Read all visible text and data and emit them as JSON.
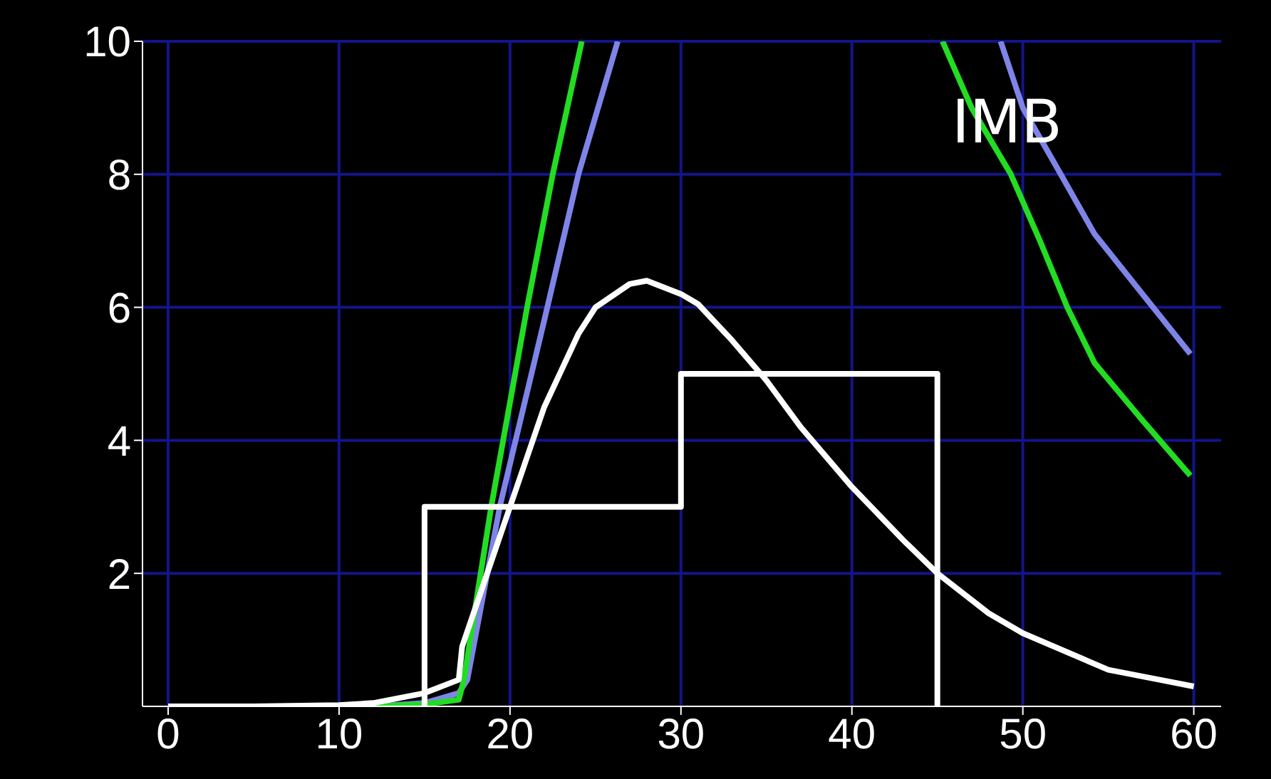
{
  "chart_data": {
    "type": "line",
    "xlim": [
      -1.5,
      61.6
    ],
    "xticks": [
      0,
      10,
      20,
      30,
      40,
      50,
      60
    ],
    "ylim": [
      0,
      10
    ],
    "yticks": [
      2,
      4,
      6,
      8,
      10
    ],
    "grid": true,
    "legend": false,
    "marker": "none",
    "line_style": "solid",
    "annotations": [
      "IMB"
    ],
    "series": [
      {
        "color": "#7f84e8",
        "x": [
          12,
          15,
          17,
          17.5,
          19.4,
          22,
          24,
          26.3,
          37,
          48.7,
          50,
          52,
          54.2,
          57,
          59.8
        ],
        "values": [
          0,
          0.05,
          0.2,
          0.4,
          3,
          5.8,
          8,
          10,
          null,
          10,
          9,
          8.1,
          7.1,
          6.2,
          5.3
        ]
      },
      {
        "color": "#22dd22",
        "x": [
          12,
          15,
          17,
          17.3,
          18.9,
          21,
          22.5,
          24.2,
          35,
          45.3,
          47,
          49.3,
          51,
          52.6,
          54.2,
          57,
          59.8
        ],
        "values": [
          0,
          0.03,
          0.1,
          0.4,
          3,
          6,
          8,
          10,
          null,
          10,
          9,
          8,
          7,
          6,
          5.16,
          4.3,
          3.47
        ]
      },
      {
        "color": "#ffffff",
        "x": [
          0,
          5,
          10,
          12,
          15,
          17,
          17.2,
          18,
          20,
          22,
          24,
          25,
          27,
          28,
          30,
          31,
          33,
          35,
          37,
          40,
          43,
          45,
          48,
          50,
          55,
          58,
          60
        ],
        "values": [
          0,
          0,
          0.02,
          0.05,
          0.2,
          0.4,
          0.9,
          1.5,
          3.0,
          4.5,
          5.6,
          6.0,
          6.35,
          6.4,
          6.2,
          6.05,
          5.5,
          4.9,
          4.2,
          3.3,
          2.5,
          2.0,
          1.4,
          1.1,
          0.55,
          0.4,
          0.3
        ]
      },
      {
        "type": "histogram",
        "color": "#ffffff",
        "bins": [
          15,
          30,
          45
        ],
        "values": [
          3,
          5
        ]
      }
    ]
  }
}
